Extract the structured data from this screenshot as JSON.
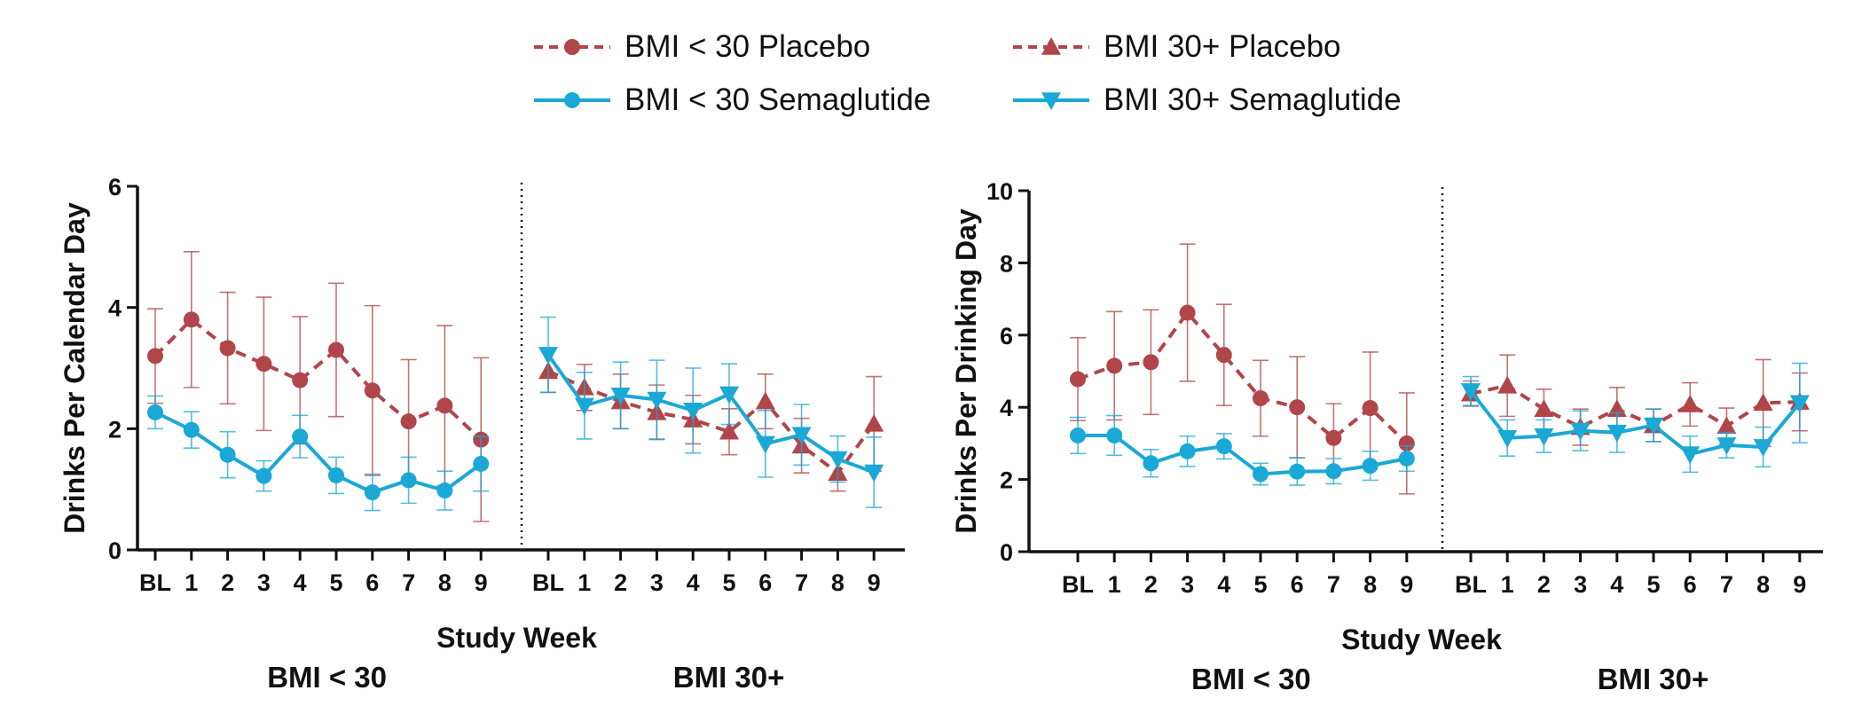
{
  "colors": {
    "placebo": "#B0454A",
    "sema": "#1AA8D6",
    "axis": "#111111"
  },
  "legend": [
    {
      "label": "BMI < 30 Placebo",
      "color": "#B0454A",
      "dash": true,
      "marker": "circle"
    },
    {
      "label": "BMI 30+ Placebo",
      "color": "#B0454A",
      "dash": true,
      "marker": "triangle-up"
    },
    {
      "label": "BMI < 30 Semaglutide",
      "color": "#1AA8D6",
      "dash": false,
      "marker": "circle"
    },
    {
      "label": "BMI 30+ Semaglutide",
      "color": "#1AA8D6",
      "dash": false,
      "marker": "triangle-down"
    }
  ],
  "chart_data": [
    {
      "type": "line",
      "ylabel": "Drinks Per Calendar Day",
      "xlabel": "Study Week",
      "ylim": [
        0,
        6
      ],
      "yticks": [
        0,
        2,
        4,
        6
      ],
      "groups": [
        "BMI < 30",
        "BMI 30+"
      ],
      "categories": [
        "BL",
        "1",
        "2",
        "3",
        "4",
        "5",
        "6",
        "7",
        "8",
        "9"
      ],
      "series": [
        {
          "name": "BMI < 30 Placebo",
          "group": 0,
          "color": "#B0454A",
          "dash": true,
          "marker": "circle",
          "values": [
            3.2,
            3.8,
            3.33,
            3.07,
            2.8,
            3.3,
            2.63,
            2.12,
            2.38,
            1.82
          ],
          "errors": [
            0.78,
            1.12,
            0.92,
            1.1,
            1.05,
            1.1,
            1.4,
            1.02,
            1.32,
            1.35
          ]
        },
        {
          "name": "BMI < 30 Semaglutide",
          "group": 0,
          "color": "#1AA8D6",
          "dash": false,
          "marker": "circle",
          "values": [
            2.27,
            1.98,
            1.57,
            1.22,
            1.87,
            1.23,
            0.95,
            1.15,
            0.98,
            1.42
          ],
          "errors": [
            0.27,
            0.3,
            0.38,
            0.25,
            0.35,
            0.3,
            0.3,
            0.38,
            0.32,
            0.45
          ]
        },
        {
          "name": "BMI 30+ Placebo",
          "group": 1,
          "color": "#B0454A",
          "dash": true,
          "marker": "triangle-up",
          "values": [
            2.95,
            2.68,
            2.45,
            2.27,
            2.15,
            1.95,
            2.45,
            1.72,
            1.27,
            2.08
          ],
          "errors": [
            0.35,
            0.38,
            0.45,
            0.45,
            0.4,
            0.38,
            0.45,
            0.45,
            0.3,
            0.78
          ]
        },
        {
          "name": "BMI 30+ Semaglutide",
          "group": 1,
          "color": "#1AA8D6",
          "dash": false,
          "marker": "triangle-down",
          "values": [
            3.22,
            2.38,
            2.55,
            2.48,
            2.3,
            2.57,
            1.75,
            1.9,
            1.5,
            1.28
          ],
          "errors": [
            0.62,
            0.55,
            0.55,
            0.65,
            0.7,
            0.5,
            0.55,
            0.5,
            0.38,
            0.58
          ]
        }
      ]
    },
    {
      "type": "line",
      "ylabel": "Drinks Per Drinking Day",
      "xlabel": "Study Week",
      "ylim": [
        0,
        10
      ],
      "yticks": [
        0,
        2,
        4,
        6,
        8,
        10
      ],
      "groups": [
        "BMI < 30",
        "BMI 30+"
      ],
      "categories": [
        "BL",
        "1",
        "2",
        "3",
        "4",
        "5",
        "6",
        "7",
        "8",
        "9"
      ],
      "series": [
        {
          "name": "BMI < 30 Placebo",
          "group": 0,
          "color": "#B0454A",
          "dash": true,
          "marker": "circle",
          "values": [
            4.78,
            5.15,
            5.25,
            6.62,
            5.45,
            4.25,
            4.0,
            3.15,
            3.98,
            3.0
          ],
          "errors": [
            1.15,
            1.5,
            1.45,
            1.9,
            1.4,
            1.05,
            1.4,
            0.95,
            1.55,
            1.4
          ]
        },
        {
          "name": "BMI < 30 Semaglutide",
          "group": 0,
          "color": "#1AA8D6",
          "dash": false,
          "marker": "circle",
          "values": [
            3.22,
            3.22,
            2.45,
            2.78,
            2.92,
            2.15,
            2.22,
            2.23,
            2.38,
            2.58
          ],
          "errors": [
            0.5,
            0.55,
            0.38,
            0.42,
            0.35,
            0.3,
            0.38,
            0.35,
            0.4,
            0.35
          ]
        },
        {
          "name": "BMI 30+ Placebo",
          "group": 1,
          "color": "#B0454A",
          "dash": true,
          "marker": "triangle-up",
          "values": [
            4.38,
            4.6,
            3.95,
            3.45,
            3.95,
            3.5,
            4.08,
            3.48,
            4.12,
            4.15
          ],
          "errors": [
            0.35,
            0.85,
            0.55,
            0.5,
            0.6,
            0.45,
            0.6,
            0.5,
            1.2,
            0.8
          ]
        },
        {
          "name": "BMI 30+ Semaglutide",
          "group": 1,
          "color": "#1AA8D6",
          "dash": false,
          "marker": "triangle-down",
          "values": [
            4.45,
            3.15,
            3.2,
            3.35,
            3.3,
            3.5,
            2.7,
            2.95,
            2.9,
            4.12
          ],
          "errors": [
            0.4,
            0.5,
            0.45,
            0.55,
            0.55,
            0.45,
            0.5,
            0.35,
            0.55,
            1.1
          ]
        }
      ]
    }
  ]
}
